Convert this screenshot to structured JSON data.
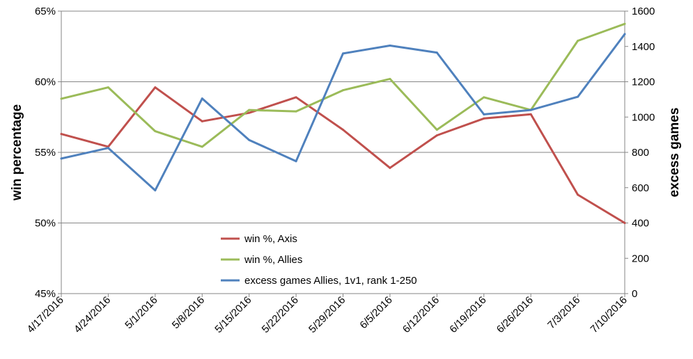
{
  "chart_data": {
    "type": "line",
    "categories": [
      "4/17/2016",
      "4/24/2016",
      "5/1/2016",
      "5/8/2016",
      "5/15/2016",
      "5/22/2016",
      "5/29/2016",
      "6/5/2016",
      "6/12/2016",
      "6/19/2016",
      "6/26/2016",
      "7/3/2016",
      "7/10/2016"
    ],
    "series": [
      {
        "name": "win %, Axis",
        "axis": "left",
        "color": "#c0504d",
        "values": [
          56.3,
          55.4,
          59.6,
          57.2,
          57.8,
          58.9,
          56.6,
          53.9,
          56.2,
          57.4,
          57.7,
          52.0,
          50.0
        ]
      },
      {
        "name": "win %, Allies",
        "axis": "left",
        "color": "#9bbb59",
        "values": [
          58.8,
          59.6,
          56.5,
          55.4,
          58.0,
          57.9,
          59.4,
          60.2,
          56.6,
          58.9,
          58.0,
          62.9,
          64.1
        ]
      },
      {
        "name": "excess games Allies, 1v1, rank 1-250",
        "axis": "right",
        "color": "#4f81bd",
        "values": [
          765,
          825,
          585,
          1105,
          870,
          750,
          1360,
          1405,
          1365,
          1015,
          1040,
          1115,
          1470
        ]
      }
    ],
    "ylabel": "win percentage",
    "y2label": "excess games",
    "ylim": [
      45,
      65
    ],
    "y_ticks": [
      "45%",
      "50%",
      "55%",
      "60%",
      "65%"
    ],
    "y2lim": [
      0,
      1600
    ],
    "y2_ticks": [
      "0",
      "200",
      "400",
      "600",
      "800",
      "1000",
      "1200",
      "1400",
      "1600"
    ],
    "grid": true,
    "legend": "center-bottom"
  }
}
